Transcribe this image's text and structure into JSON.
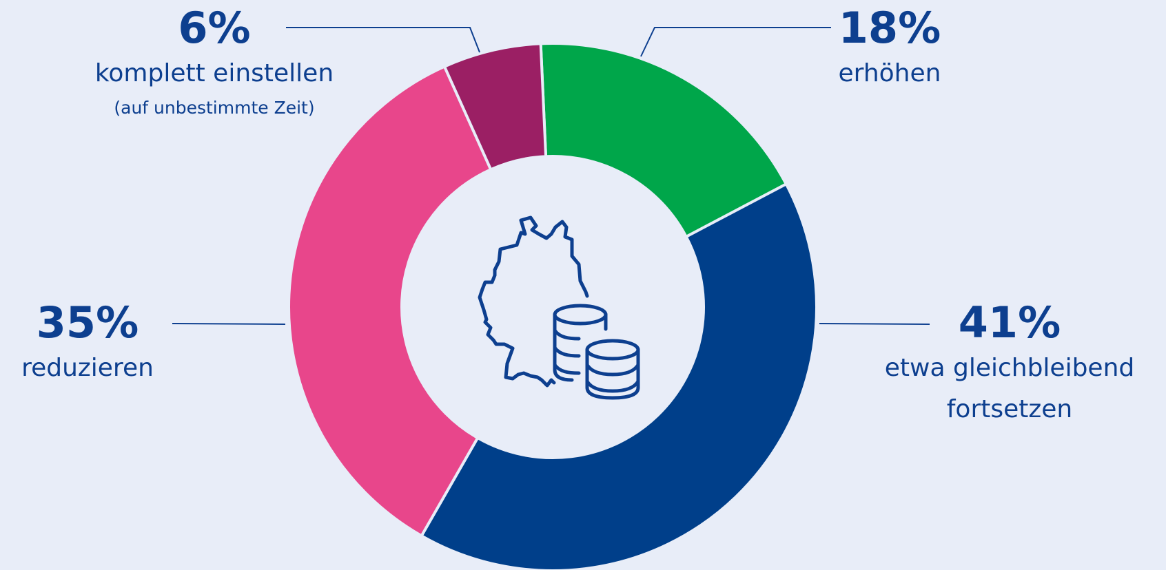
{
  "chart_data": {
    "type": "donut",
    "categories": [
      "erhöhen",
      "etwa gleichbleibend fortsetzen",
      "reduzieren",
      "komplett einstellen"
    ],
    "values": [
      18,
      41,
      35,
      6
    ],
    "value_labels": [
      "18%",
      "41%",
      "35%",
      "6%"
    ],
    "colors": [
      "#00a64a",
      "#003f8a",
      "#e8468b",
      "#9b1f64"
    ],
    "annotation": "(auf unbestimmte Zeit)"
  }
}
